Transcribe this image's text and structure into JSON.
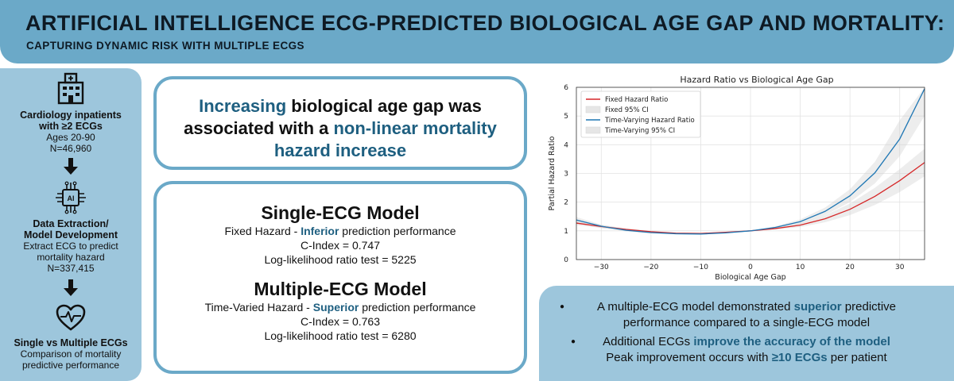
{
  "header": {
    "title": "ARTIFICIAL INTELLIGENCE ECG-PREDICTED BIOLOGICAL AGE GAP AND MORTALITY:",
    "subtitle": "CAPTURING DYNAMIC RISK WITH MULTIPLE ECGS"
  },
  "steps": [
    {
      "icon": "hospital-icon",
      "title1": "Cardiology inpatients",
      "title2": "with ≥2 ECGs",
      "text1": "Ages 20-90",
      "text2": "N=46,960"
    },
    {
      "icon": "ai-chip-icon",
      "title1": "Data Extraction/",
      "title2": "Model Development",
      "text1": "Extract ECG to predict",
      "text2": "mortality hazard",
      "text3": "N=337,415"
    },
    {
      "icon": "heart-pulse-icon",
      "title1": "Single vs Multiple ECGs",
      "text1": "Comparison of mortality",
      "text2": "predictive performance"
    }
  ],
  "finding": {
    "hl1": "Increasing",
    "t1": " biological age gap was",
    "t2": "associated with a ",
    "hl2": "non-linear mortality",
    "t3": "hazard increase"
  },
  "single_model": {
    "title": "Single-ECG Model",
    "desc_a": "Fixed Hazard - ",
    "desc_hl": "Inferior",
    "desc_b": " prediction performance",
    "cindex": "C-Index = 0.747",
    "llr": "Log-likelihood ratio test = 5225"
  },
  "multi_model": {
    "title": "Multiple-ECG Model",
    "desc_a": "Time-Varied Hazard - ",
    "desc_hl": "Superior",
    "desc_b": " prediction performance",
    "cindex": "C-Index = 0.763",
    "llr": "Log-likelihood ratio test = 6280"
  },
  "bullets": {
    "b1a": "A multiple-ECG model demonstrated ",
    "b1hl": "superior",
    "b1b": " predictive",
    "b1c": "performance compared to a single-ECG model",
    "b2a": "Additional ECGs ",
    "b2hl": "improve the accuracy of the model",
    "b2b": "Peak improvement occurs with ",
    "b2hl2": "≥10 ECGs",
    "b2c": " per patient"
  },
  "chart_data": {
    "type": "line",
    "title": "Hazard Ratio vs Biological Age Gap",
    "xlabel": "Biological Age Gap",
    "ylabel": "Partial Hazard Ratio",
    "xlim": [
      -35,
      35
    ],
    "ylim": [
      0,
      6
    ],
    "xticks": [
      -30,
      -20,
      -10,
      0,
      10,
      20,
      30
    ],
    "yticks": [
      0,
      1,
      2,
      3,
      4,
      5,
      6
    ],
    "grid": true,
    "legend_position": "top-left",
    "legend": [
      "Fixed Hazard Ratio",
      "Fixed 95% CI",
      "Time-Varying Hazard Ratio",
      "Time-Varying 95% CI"
    ],
    "x": [
      -35,
      -30,
      -25,
      -20,
      -15,
      -10,
      -5,
      0,
      5,
      10,
      15,
      20,
      25,
      30,
      35
    ],
    "series": [
      {
        "name": "Fixed Hazard Ratio",
        "color": "#d62728",
        "values": [
          1.27,
          1.15,
          1.05,
          0.97,
          0.92,
          0.91,
          0.95,
          1.0,
          1.08,
          1.2,
          1.42,
          1.75,
          2.2,
          2.75,
          3.38
        ],
        "ci_low": [
          1.2,
          1.1,
          1.01,
          0.94,
          0.9,
          0.89,
          0.93,
          1.0,
          1.05,
          1.13,
          1.3,
          1.55,
          1.9,
          2.35,
          2.9
        ],
        "ci_high": [
          1.34,
          1.2,
          1.09,
          1.0,
          0.94,
          0.93,
          0.97,
          1.0,
          1.11,
          1.27,
          1.54,
          1.95,
          2.5,
          3.15,
          3.86
        ]
      },
      {
        "name": "Time-Varying Hazard Ratio",
        "color": "#1f77b4",
        "values": [
          1.38,
          1.16,
          1.02,
          0.94,
          0.9,
          0.89,
          0.93,
          1.0,
          1.12,
          1.32,
          1.68,
          2.22,
          3.02,
          4.2,
          5.95
        ],
        "ci_low": [
          1.28,
          1.1,
          0.98,
          0.91,
          0.88,
          0.87,
          0.91,
          1.0,
          1.08,
          1.24,
          1.55,
          2.0,
          2.65,
          3.6,
          5.0
        ],
        "ci_high": [
          1.48,
          1.22,
          1.06,
          0.97,
          0.92,
          0.91,
          0.95,
          1.0,
          1.16,
          1.4,
          1.81,
          2.45,
          3.4,
          4.85,
          6.0
        ]
      }
    ]
  }
}
